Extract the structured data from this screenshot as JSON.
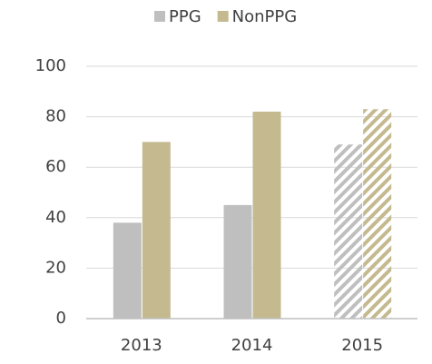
{
  "chart_data": {
    "type": "bar",
    "categories": [
      "2013",
      "2014",
      "2015"
    ],
    "series": [
      {
        "name": "PPG",
        "color": "#bfbfbf",
        "values": [
          38,
          45,
          69
        ]
      },
      {
        "name": "NonPPG",
        "color": "#c4b98f",
        "values": [
          70,
          82,
          83
        ]
      }
    ],
    "hatched": [
      false,
      false,
      true
    ],
    "ylim": [
      0,
      100
    ],
    "yticks": [
      0,
      20,
      40,
      60,
      80,
      100
    ],
    "grid": true,
    "legend": "top"
  }
}
